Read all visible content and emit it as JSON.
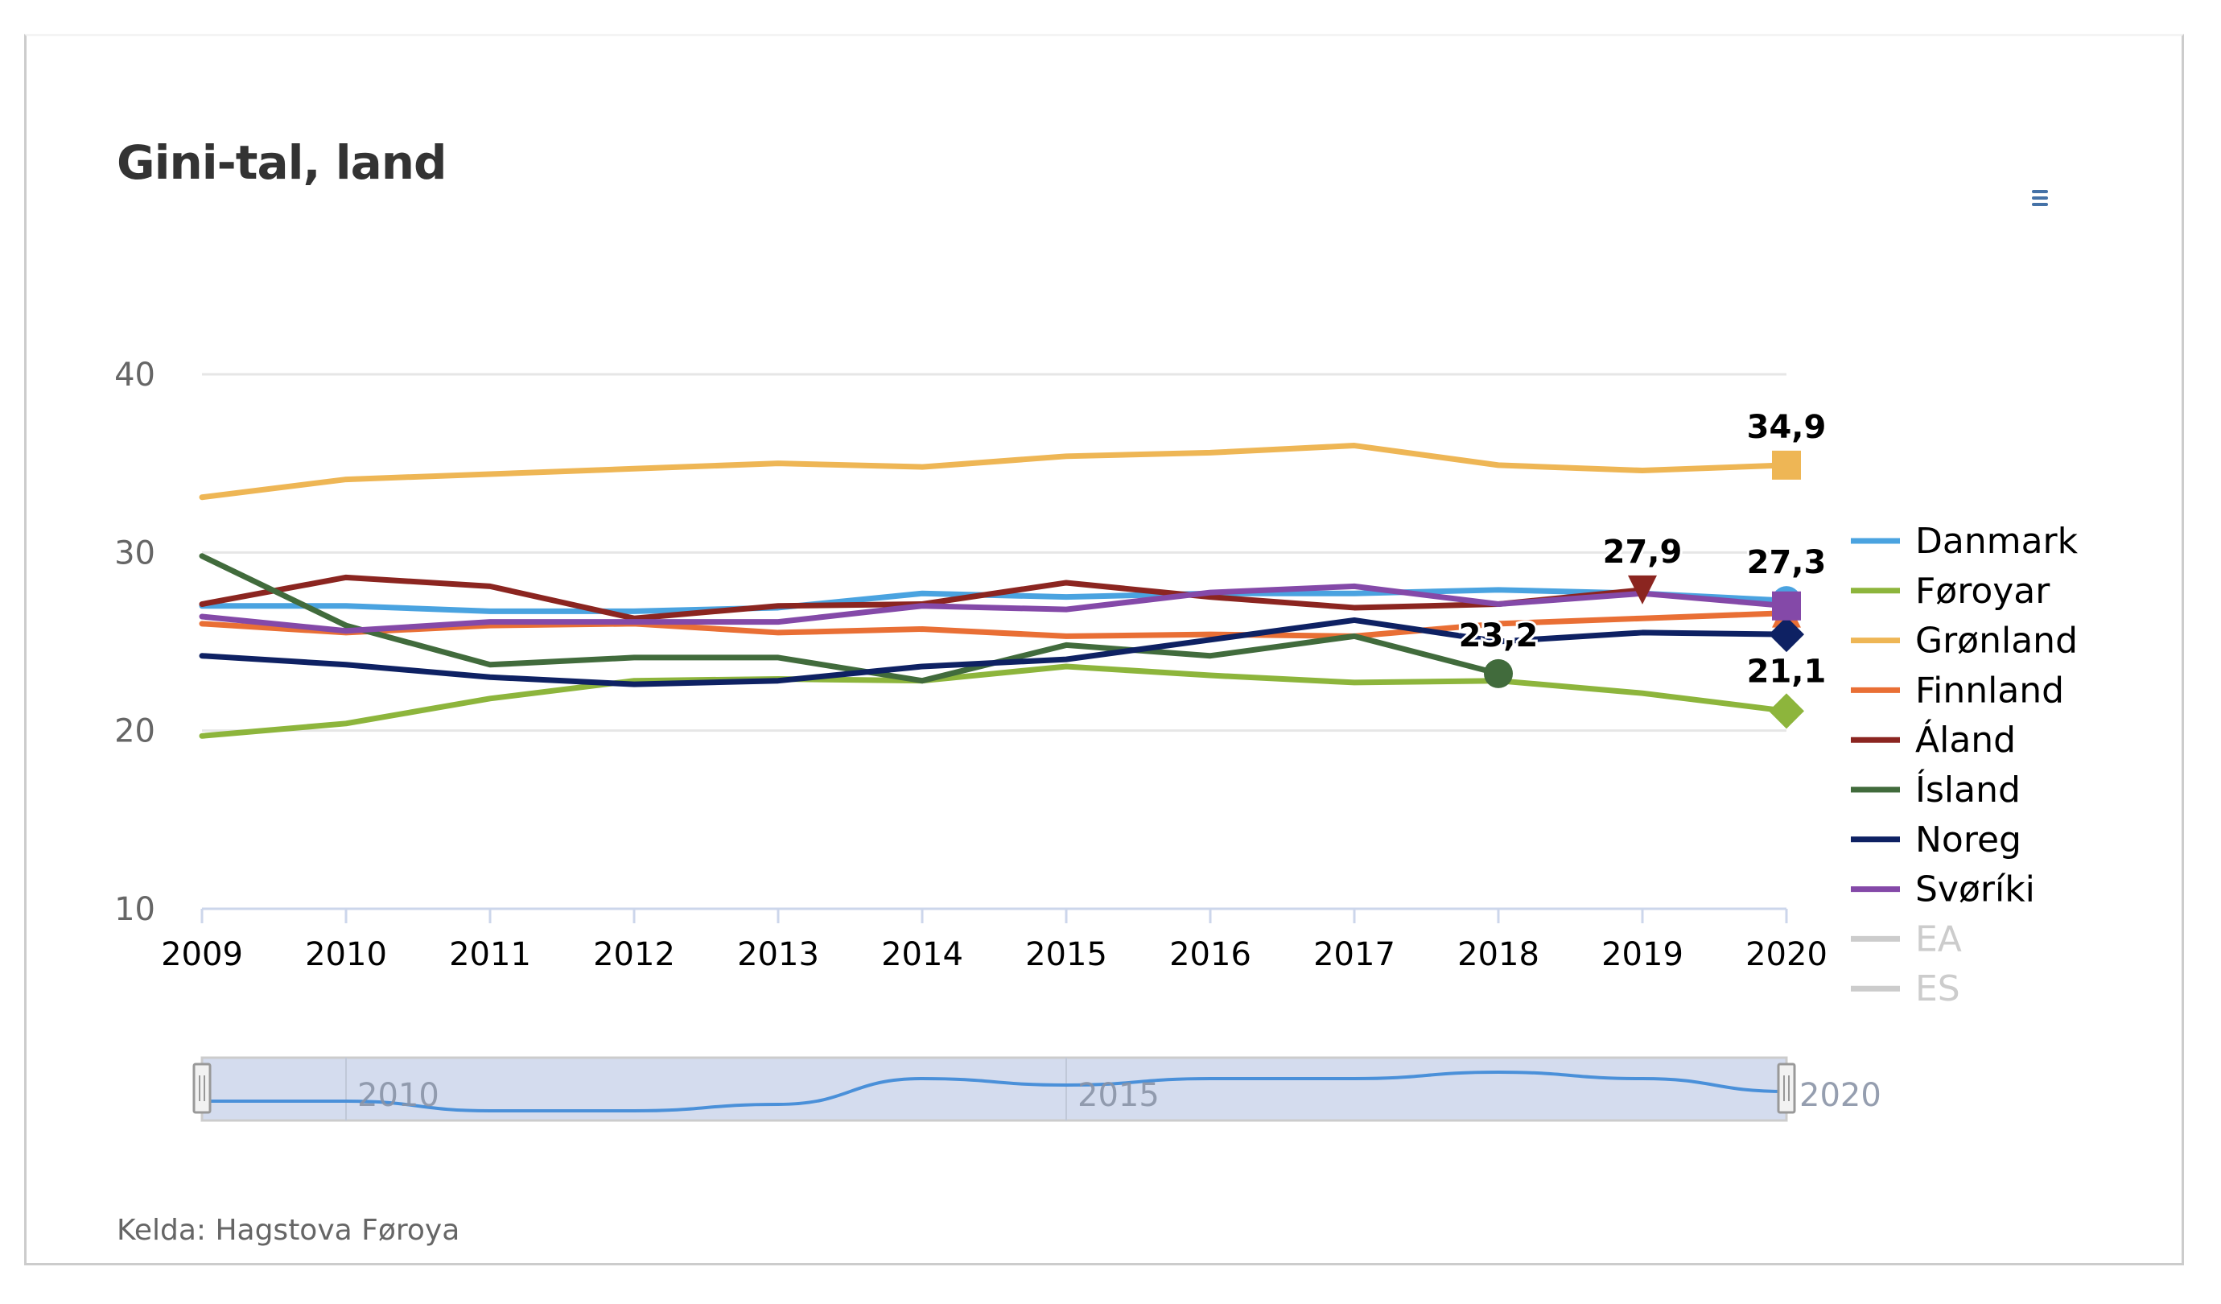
{
  "title": "Gini-tal, land",
  "menu_icon": "hamburger-menu-icon",
  "credit": "Kelda: Hagstova Føroya",
  "chart_data": {
    "type": "line",
    "title": "Gini-tal, land",
    "xlabel": "",
    "ylabel": "",
    "x": [
      2009,
      2010,
      2011,
      2012,
      2013,
      2014,
      2015,
      2016,
      2017,
      2018,
      2019,
      2020
    ],
    "x_tick_labels": [
      "2009",
      "2010",
      "2011",
      "2012",
      "2013",
      "2014",
      "2015",
      "2016",
      "2017",
      "2018",
      "2019",
      "2020"
    ],
    "ylim": [
      10,
      40
    ],
    "y_ticks": [
      10,
      20,
      30,
      40
    ],
    "y_tick_labels": [
      "10",
      "20",
      "30",
      "40"
    ],
    "grid": true,
    "legend_position": "right",
    "series": [
      {
        "name": "Danmark",
        "color": "#4aa3e0",
        "visible": true,
        "marker": "circle",
        "values": [
          27.0,
          27.0,
          26.7,
          26.7,
          26.9,
          27.7,
          27.5,
          27.7,
          27.7,
          27.9,
          27.7,
          27.3
        ],
        "last_label": "27,3",
        "last_index": 11
      },
      {
        "name": "Føroyar",
        "color": "#8db53c",
        "visible": true,
        "marker": "diamond",
        "values": [
          19.7,
          20.4,
          21.8,
          22.8,
          22.9,
          22.8,
          23.6,
          23.1,
          22.7,
          22.8,
          22.1,
          21.1
        ],
        "last_label": "21,1",
        "last_index": 11
      },
      {
        "name": "Grønland",
        "color": "#eeb655",
        "visible": true,
        "marker": "square",
        "values": [
          33.1,
          34.1,
          34.4,
          34.7,
          35.0,
          34.8,
          35.4,
          35.6,
          36.0,
          34.9,
          34.6,
          34.9
        ],
        "last_label": "34,9",
        "last_index": 11
      },
      {
        "name": "Finnland",
        "color": "#e96f35",
        "visible": true,
        "marker": "triangle",
        "values": [
          26.0,
          25.5,
          25.9,
          26.0,
          25.5,
          25.7,
          25.3,
          25.4,
          25.3,
          26.0,
          26.3,
          26.6
        ],
        "last_label": null,
        "last_index": 11
      },
      {
        "name": "Áland",
        "color": "#8b2520",
        "visible": true,
        "marker": "triangle-down",
        "values": [
          27.1,
          28.6,
          28.1,
          26.3,
          27.0,
          27.1,
          28.3,
          27.5,
          26.9,
          27.1,
          27.9,
          null
        ],
        "last_label": "27,9",
        "last_index": 10
      },
      {
        "name": "Ísland",
        "color": "#416b3c",
        "visible": true,
        "marker": "circle",
        "values": [
          29.8,
          25.9,
          23.7,
          24.1,
          24.1,
          22.8,
          24.8,
          24.2,
          25.3,
          23.2,
          null,
          null
        ],
        "last_label": "23,2",
        "last_index": 9
      },
      {
        "name": "Noreg",
        "color": "#0e2163",
        "visible": true,
        "marker": "diamond",
        "values": [
          24.2,
          23.7,
          23.0,
          22.6,
          22.8,
          23.6,
          24.0,
          25.1,
          26.2,
          25.0,
          25.5,
          25.4
        ],
        "last_label": null,
        "last_index": 11
      },
      {
        "name": "Svøríki",
        "color": "#8449a8",
        "visible": true,
        "marker": "square",
        "values": [
          26.4,
          25.6,
          26.1,
          26.1,
          26.1,
          27.0,
          26.8,
          27.75,
          28.1,
          27.1,
          27.7,
          27.0
        ],
        "last_label": null,
        "last_index": 11
      },
      {
        "name": "EA",
        "color": "#cccccc",
        "visible": false,
        "marker": "none",
        "values": []
      },
      {
        "name": "ES",
        "color": "#cccccc",
        "visible": false,
        "marker": "none",
        "values": []
      }
    ],
    "navigator": {
      "range": [
        2009,
        2020
      ],
      "tick_labels": [
        "2010",
        "2015",
        "2020"
      ],
      "series_name": "Danmark",
      "fill_color": "#ccd6eb",
      "line_color": "#4a90d9"
    }
  }
}
